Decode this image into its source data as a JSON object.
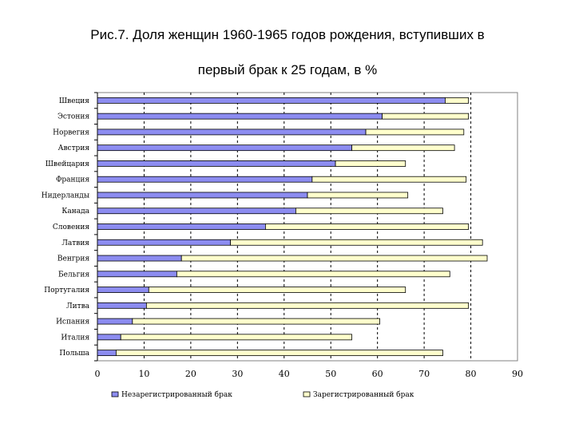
{
  "title_line1": "Рис.7. Доля женщин 1960-1965 годов рождения, вступивших в",
  "title_line2": "первый брак к 25 годам, в %",
  "chart_data": {
    "type": "bar",
    "orientation": "horizontal",
    "stacked": true,
    "categories": [
      "Швеция",
      "Эстония",
      "Норвегия",
      "Австрия",
      "Швейцария",
      "Франция",
      "Нидерланды",
      "Канада",
      "Словения",
      "Латвия",
      "Венгрия",
      "Бельгия",
      "Португалия",
      "Литва",
      "Испания",
      "Италия",
      "Польша"
    ],
    "series": [
      {
        "name": "Незарегистрированный брак",
        "color": "#8c8cf0",
        "values": [
          74.5,
          61.0,
          57.5,
          54.5,
          51.0,
          46.0,
          45.0,
          42.5,
          36.0,
          28.5,
          18.0,
          17.0,
          11.0,
          10.5,
          7.5,
          5.0,
          4.0
        ]
      },
      {
        "name": "Зарегистрированный брак",
        "color": "#ffffcc",
        "values": [
          5.0,
          18.5,
          21.0,
          22.0,
          15.0,
          33.0,
          21.5,
          31.5,
          43.5,
          54.0,
          65.5,
          58.5,
          55.0,
          69.0,
          53.0,
          49.5,
          70.0
        ]
      }
    ],
    "xlim": [
      0,
      90
    ],
    "xticks": [
      0,
      10,
      20,
      30,
      40,
      50,
      60,
      70,
      80,
      90
    ],
    "gridlines": "vertical-dashed",
    "legend": "bottom"
  }
}
